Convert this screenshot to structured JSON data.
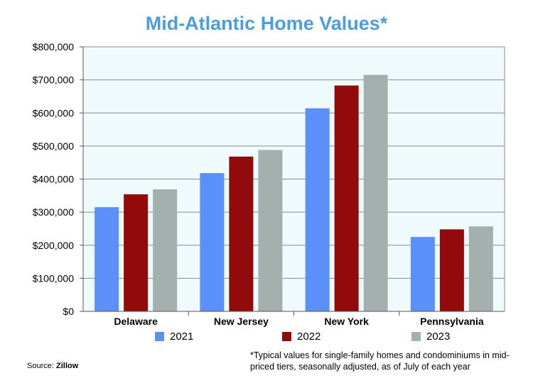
{
  "title": "Mid-Atlantic Home Values*",
  "chart_data": {
    "type": "bar",
    "categories": [
      "Delaware",
      "New Jersey",
      "New York",
      "Pennsylvania"
    ],
    "series": [
      {
        "name": "2021",
        "color": "#5b8ff9",
        "values": [
          315000,
          418000,
          614000,
          225000
        ]
      },
      {
        "name": "2022",
        "color": "#930a0a",
        "values": [
          354000,
          468000,
          683000,
          248000
        ]
      },
      {
        "name": "2023",
        "color": "#a3b0ad",
        "values": [
          369000,
          488000,
          715000,
          257000
        ]
      }
    ],
    "ylim": [
      0,
      800000
    ],
    "yticks": [
      0,
      100000,
      200000,
      300000,
      400000,
      500000,
      600000,
      700000,
      800000
    ],
    "ytick_labels": [
      "$0",
      "$100,000",
      "$200,000",
      "$300,000",
      "$400,000",
      "$500,000",
      "$600,000",
      "$700,000",
      "$800,000"
    ],
    "grid": true,
    "plot_background": "#eefafc",
    "legend": "bottom"
  },
  "source_label": "Source:",
  "source_name": "Zillow",
  "footnote": "*Typical values for single-family homes and condominiums in mid-priced tiers, seasonally adjusted, as of July of each year"
}
